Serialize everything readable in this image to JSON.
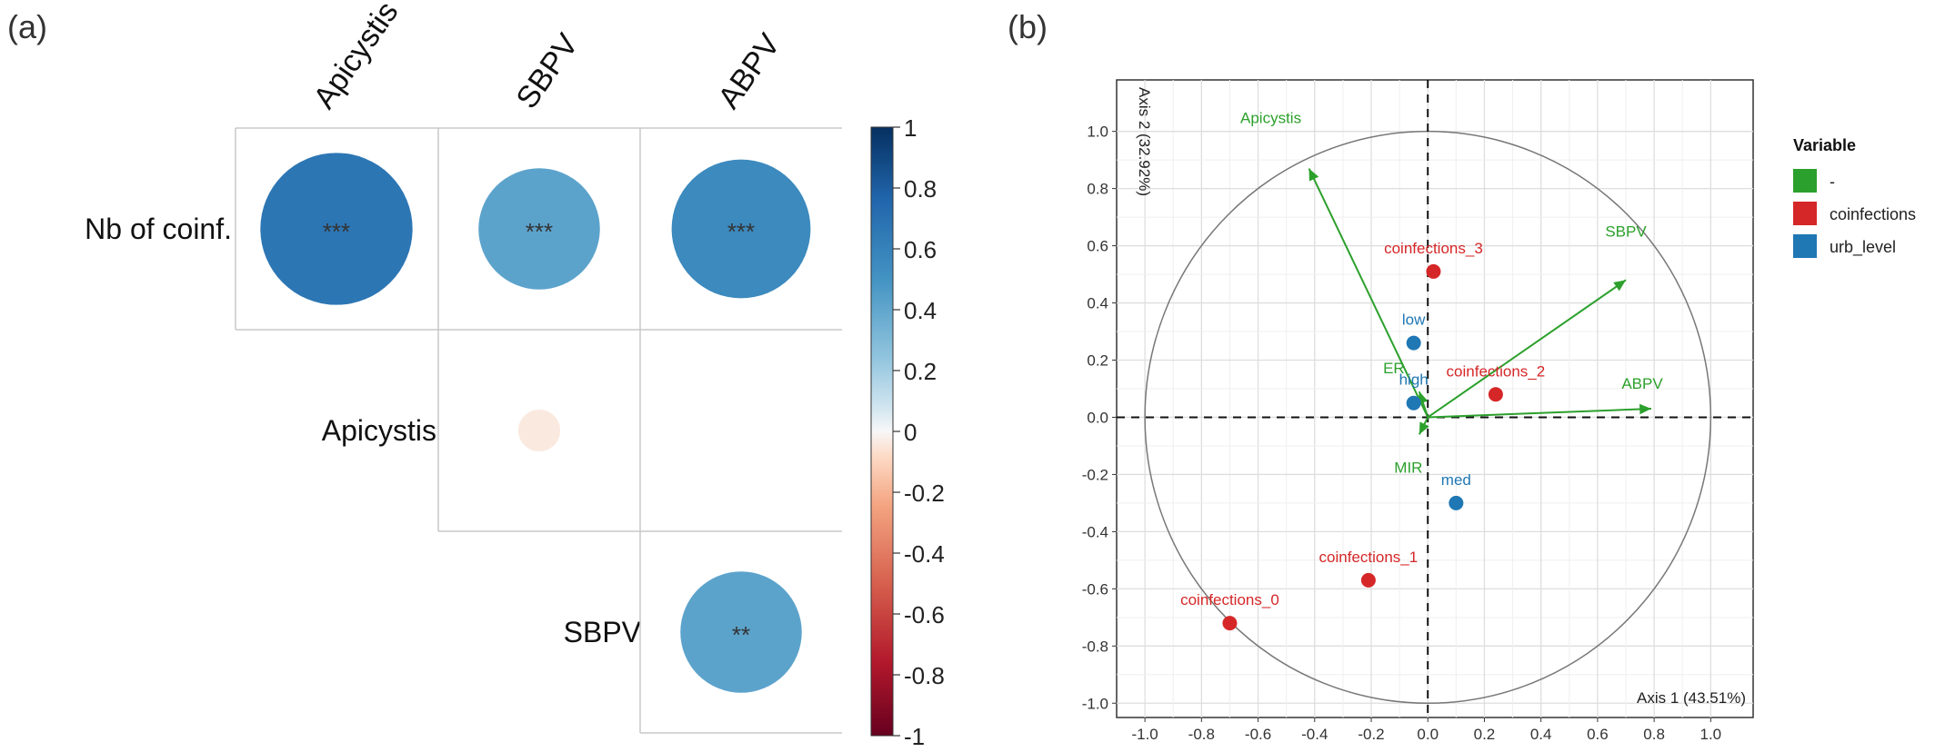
{
  "chart_data": [
    {
      "panel_label": "(a)",
      "type": "heatmap",
      "title": "",
      "columns": [
        "Apicystis",
        "SBPV",
        "ABPV"
      ],
      "rows": [
        "Nb of coinf.",
        "Apicystis",
        "SBPV"
      ],
      "cells": [
        {
          "row": "Nb of coinf.",
          "col": "Apicystis",
          "value": 0.66,
          "sig": "***"
        },
        {
          "row": "Nb of coinf.",
          "col": "SBPV",
          "value": 0.42,
          "sig": "***"
        },
        {
          "row": "Nb of coinf.",
          "col": "ABPV",
          "value": 0.55,
          "sig": "***"
        },
        {
          "row": "Apicystis",
          "col": "SBPV",
          "value": -0.05,
          "sig": ""
        },
        {
          "row": "Apicystis",
          "col": "ABPV",
          "value": 0.0,
          "sig": ""
        },
        {
          "row": "SBPV",
          "col": "ABPV",
          "value": 0.42,
          "sig": "**"
        }
      ],
      "empty_cells": [
        {
          "row": "Apicystis",
          "col": "Apicystis"
        },
        {
          "row": "SBPV",
          "col": "Apicystis"
        },
        {
          "row": "SBPV",
          "col": "SBPV"
        }
      ],
      "colorbar": {
        "range": [
          -1,
          1
        ],
        "ticks": [
          "1",
          "0.8",
          "0.6",
          "0.4",
          "0.2",
          "0",
          "-0.2",
          "-0.4",
          "-0.6",
          "-0.8",
          "-1"
        ],
        "low_color": "#67001f",
        "mid_color": "#f7f7f7",
        "high_color": "#053061"
      }
    },
    {
      "panel_label": "(b)",
      "type": "scatter",
      "title": "",
      "xlabel": "Axis 1 (43.51%)",
      "ylabel": "Axis 2 (32.92%)",
      "xlim": [
        -1.1,
        1.15
      ],
      "ylim": [
        -1.05,
        1.18
      ],
      "xticks": [
        "-1.0",
        "-0.8",
        "-0.6",
        "-0.4",
        "-0.2",
        "0.0",
        "0.2",
        "0.4",
        "0.6",
        "0.8",
        "1.0"
      ],
      "yticks": [
        "-1.0",
        "-0.8",
        "-0.6",
        "-0.4",
        "-0.2",
        "0.0",
        "0.2",
        "0.4",
        "0.6",
        "0.8",
        "1.0"
      ],
      "grid": true,
      "unit_circle": true,
      "legend": {
        "title": "Variable",
        "placement": "right",
        "entries": [
          {
            "label": "-",
            "color": "#2ca02c"
          },
          {
            "label": "coinfections",
            "color": "#d62728"
          },
          {
            "label": "urb_level",
            "color": "#1f77b4"
          }
        ]
      },
      "arrows": [
        {
          "name": "Apicystis",
          "x": -0.42,
          "y": 0.87,
          "group": "-"
        },
        {
          "name": "SBPV",
          "x": 0.7,
          "y": 0.48,
          "group": "-"
        },
        {
          "name": "ABPV",
          "x": 0.79,
          "y": 0.03,
          "group": "-"
        },
        {
          "name": "ER",
          "x": -0.03,
          "y": 0.09,
          "group": "-"
        },
        {
          "name": "MIR",
          "x": -0.03,
          "y": -0.06,
          "group": "-"
        }
      ],
      "points": [
        {
          "name": "coinfections_3",
          "x": 0.02,
          "y": 0.51,
          "group": "coinfections"
        },
        {
          "name": "coinfections_2",
          "x": 0.24,
          "y": 0.08,
          "group": "coinfections"
        },
        {
          "name": "coinfections_1",
          "x": -0.21,
          "y": -0.57,
          "group": "coinfections"
        },
        {
          "name": "coinfections_0",
          "x": -0.7,
          "y": -0.72,
          "group": "coinfections"
        },
        {
          "name": "low",
          "x": -0.05,
          "y": 0.26,
          "group": "urb_level"
        },
        {
          "name": "high",
          "x": -0.05,
          "y": 0.05,
          "group": "urb_level"
        },
        {
          "name": "med",
          "x": 0.1,
          "y": -0.3,
          "group": "urb_level"
        }
      ]
    }
  ]
}
